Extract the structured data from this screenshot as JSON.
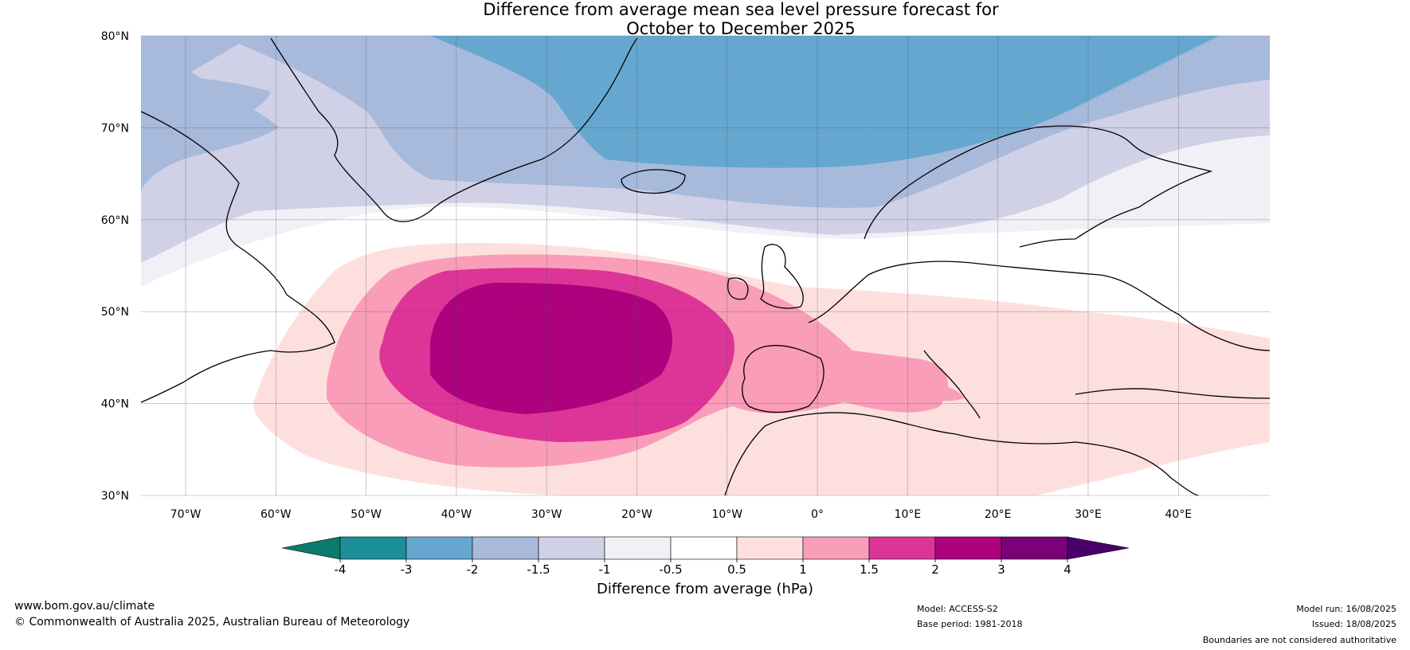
{
  "title_line1": "Difference from average mean sea level pressure forecast for",
  "title_line2": "October to December 2025",
  "lat_labels": [
    "80°N",
    "70°N",
    "60°N",
    "50°N",
    "40°N",
    "30°N"
  ],
  "lon_labels": [
    "70°W",
    "60°W",
    "50°W",
    "40°W",
    "30°W",
    "20°W",
    "10°W",
    "0°",
    "10°E",
    "20°E",
    "30°E",
    "40°E"
  ],
  "colorbar": {
    "ticks": [
      "-4",
      "-3",
      "-2",
      "-1.5",
      "-1",
      "-0.5",
      "0.5",
      "1",
      "1.5",
      "2",
      "3",
      "4"
    ],
    "colors": [
      "#0d7a6e",
      "#1d8f98",
      "#65a7cf",
      "#a7badc",
      "#d0d1e6",
      "#f2eff6",
      "#ffffff",
      "#fde0dd",
      "#f99db9",
      "#dd3497",
      "#ad017e",
      "#7a0177",
      "#49006a"
    ],
    "label": "Difference from average (hPa)"
  },
  "footer": {
    "url": "www.bom.gov.au/climate",
    "copyright": "© Commonwealth of Australia 2025, Australian Bureau of Meteorology",
    "model": "Model: ACCESS-S2",
    "base_period": "Base period: 1981-2018",
    "model_run": "Model run: 16/08/2025",
    "issued": "Issued: 18/08/2025",
    "disclaimer": "Boundaries are not considered authoritative"
  }
}
